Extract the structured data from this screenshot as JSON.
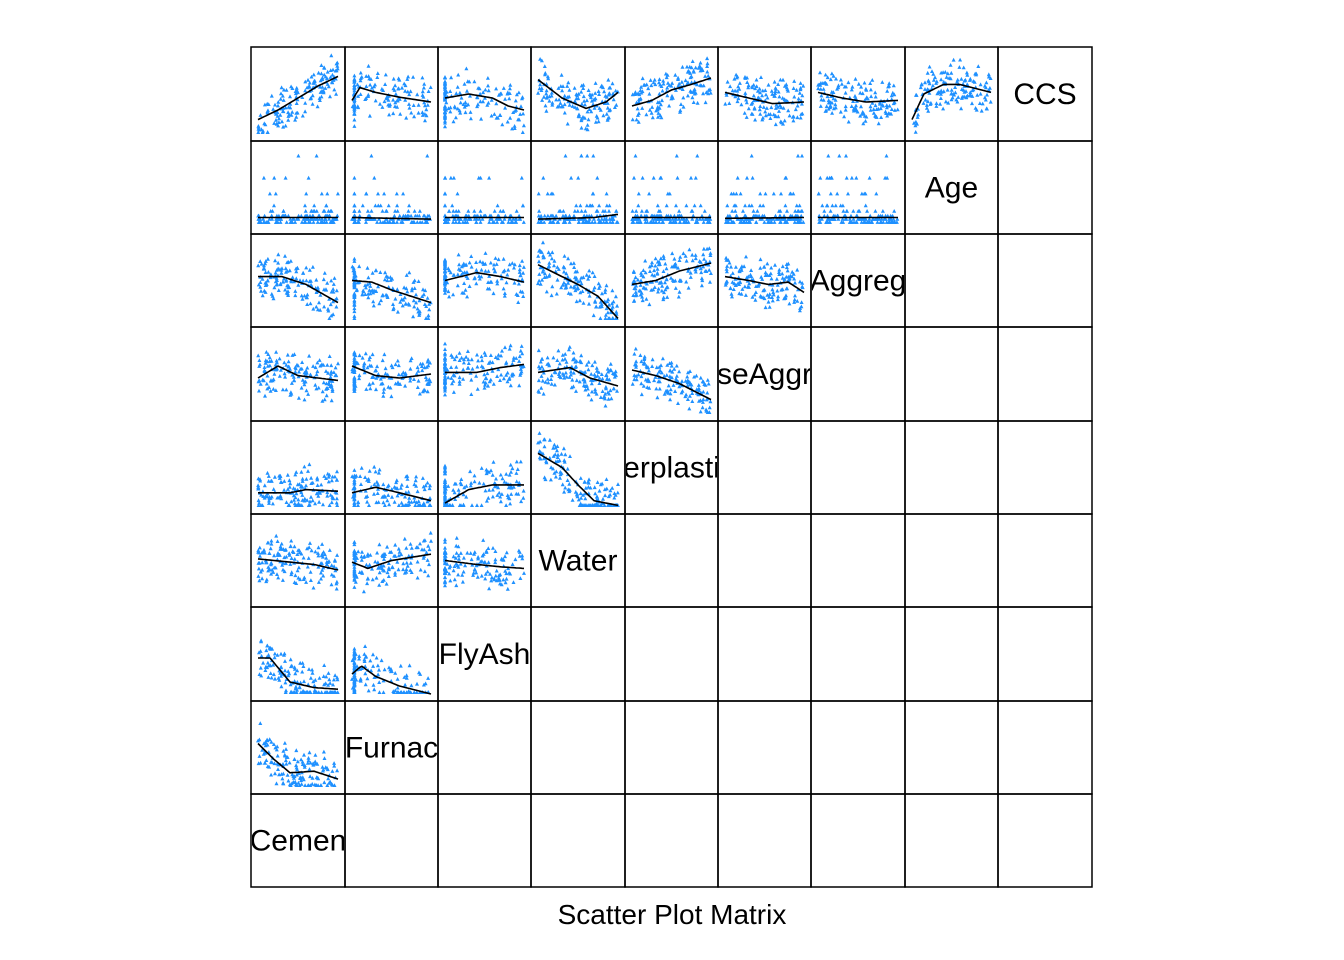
{
  "chart_data": {
    "type": "scatter",
    "title": "Scatter Plot Matrix",
    "layout": "lower-left triangle panels, variable names on anti-diagonal",
    "variables": [
      "Cement",
      "BlastFurnace",
      "FlyAsh",
      "Water",
      "Superplasticizer",
      "CoarseAggregate",
      "FineAggregate",
      "Age",
      "CCS"
    ],
    "variable_labels_visible": [
      "Cemen",
      "Furnac",
      "FlyAsh",
      "Water",
      "erplasti",
      "seAggr",
      "Aggreg",
      "Age",
      "CCS"
    ],
    "point_marker": "triangle",
    "point_color": "#1E90FF",
    "smoother_color": "#000000",
    "axes_ticks_shown": false,
    "grid": false,
    "panels": [
      {
        "y": "CCS",
        "x": "Cement",
        "smooth": [
          [
            0,
            0.18
          ],
          [
            0.25,
            0.3
          ],
          [
            0.5,
            0.45
          ],
          [
            0.75,
            0.6
          ],
          [
            1,
            0.72
          ]
        ]
      },
      {
        "y": "CCS",
        "x": "BlastFurnace",
        "smooth": [
          [
            0,
            0.42
          ],
          [
            0.1,
            0.58
          ],
          [
            0.3,
            0.52
          ],
          [
            0.6,
            0.46
          ],
          [
            1,
            0.4
          ]
        ]
      },
      {
        "y": "CCS",
        "x": "FlyAsh",
        "smooth": [
          [
            0,
            0.45
          ],
          [
            0.3,
            0.5
          ],
          [
            0.6,
            0.45
          ],
          [
            0.8,
            0.35
          ],
          [
            1,
            0.3
          ]
        ]
      },
      {
        "y": "CCS",
        "x": "Water",
        "smooth": [
          [
            0,
            0.68
          ],
          [
            0.3,
            0.45
          ],
          [
            0.6,
            0.32
          ],
          [
            0.85,
            0.4
          ],
          [
            1,
            0.52
          ]
        ]
      },
      {
        "y": "CCS",
        "x": "Superplasticizer",
        "smooth": [
          [
            0,
            0.35
          ],
          [
            0.25,
            0.42
          ],
          [
            0.5,
            0.55
          ],
          [
            0.75,
            0.62
          ],
          [
            1,
            0.7
          ]
        ]
      },
      {
        "y": "CCS",
        "x": "CoarseAggregate",
        "smooth": [
          [
            0,
            0.52
          ],
          [
            0.3,
            0.45
          ],
          [
            0.6,
            0.38
          ],
          [
            1,
            0.4
          ]
        ]
      },
      {
        "y": "CCS",
        "x": "FineAggregate",
        "smooth": [
          [
            0,
            0.52
          ],
          [
            0.3,
            0.45
          ],
          [
            0.6,
            0.4
          ],
          [
            1,
            0.42
          ]
        ]
      },
      {
        "y": "CCS",
        "x": "Age",
        "smooth": [
          [
            0,
            0.18
          ],
          [
            0.15,
            0.5
          ],
          [
            0.4,
            0.62
          ],
          [
            0.6,
            0.62
          ],
          [
            1,
            0.52
          ]
        ]
      },
      {
        "y": "Age",
        "x": "Cement",
        "smooth": [
          [
            0,
            0.12
          ],
          [
            1,
            0.12
          ]
        ]
      },
      {
        "y": "Age",
        "x": "BlastFurnace",
        "smooth": [
          [
            0,
            0.12
          ],
          [
            1,
            0.1
          ]
        ]
      },
      {
        "y": "Age",
        "x": "FlyAsh",
        "smooth": [
          [
            0,
            0.12
          ],
          [
            1,
            0.12
          ]
        ]
      },
      {
        "y": "Age",
        "x": "Water",
        "smooth": [
          [
            0,
            0.1
          ],
          [
            0.7,
            0.12
          ],
          [
            1,
            0.16
          ]
        ]
      },
      {
        "y": "Age",
        "x": "Superplasticizer",
        "smooth": [
          [
            0,
            0.12
          ],
          [
            1,
            0.12
          ]
        ]
      },
      {
        "y": "Age",
        "x": "CoarseAggregate",
        "smooth": [
          [
            0,
            0.11
          ],
          [
            1,
            0.12
          ]
        ]
      },
      {
        "y": "Age",
        "x": "FineAggregate",
        "smooth": [
          [
            0,
            0.12
          ],
          [
            1,
            0.12
          ]
        ]
      },
      {
        "y": "FineAggregate",
        "x": "Cement",
        "smooth": [
          [
            0,
            0.55
          ],
          [
            0.3,
            0.55
          ],
          [
            0.6,
            0.45
          ],
          [
            1,
            0.22
          ]
        ]
      },
      {
        "y": "FineAggregate",
        "x": "BlastFurnace",
        "smooth": [
          [
            0,
            0.5
          ],
          [
            0.25,
            0.48
          ],
          [
            0.5,
            0.38
          ],
          [
            1,
            0.22
          ]
        ]
      },
      {
        "y": "FineAggregate",
        "x": "FlyAsh",
        "smooth": [
          [
            0,
            0.5
          ],
          [
            0.4,
            0.6
          ],
          [
            0.7,
            0.55
          ],
          [
            1,
            0.48
          ]
        ]
      },
      {
        "y": "FineAggregate",
        "x": "Water",
        "smooth": [
          [
            0,
            0.7
          ],
          [
            0.3,
            0.55
          ],
          [
            0.5,
            0.45
          ],
          [
            0.75,
            0.3
          ],
          [
            1,
            0.02
          ]
        ]
      },
      {
        "y": "FineAggregate",
        "x": "Superplasticizer",
        "smooth": [
          [
            0,
            0.45
          ],
          [
            0.3,
            0.5
          ],
          [
            0.6,
            0.62
          ],
          [
            1,
            0.72
          ]
        ]
      },
      {
        "y": "FineAggregate",
        "x": "CoarseAggregate",
        "smooth": [
          [
            0,
            0.55
          ],
          [
            0.3,
            0.5
          ],
          [
            0.55,
            0.45
          ],
          [
            0.8,
            0.48
          ],
          [
            1,
            0.35
          ]
        ]
      },
      {
        "y": "CoarseAggregate",
        "x": "Cement",
        "smooth": [
          [
            0,
            0.45
          ],
          [
            0.25,
            0.6
          ],
          [
            0.5,
            0.48
          ],
          [
            1,
            0.42
          ]
        ]
      },
      {
        "y": "CoarseAggregate",
        "x": "BlastFurnace",
        "smooth": [
          [
            0,
            0.6
          ],
          [
            0.3,
            0.48
          ],
          [
            0.6,
            0.45
          ],
          [
            1,
            0.5
          ]
        ]
      },
      {
        "y": "CoarseAggregate",
        "x": "FlyAsh",
        "smooth": [
          [
            0,
            0.52
          ],
          [
            0.4,
            0.52
          ],
          [
            0.7,
            0.58
          ],
          [
            1,
            0.62
          ]
        ]
      },
      {
        "y": "CoarseAggregate",
        "x": "Water",
        "smooth": [
          [
            0,
            0.52
          ],
          [
            0.4,
            0.58
          ],
          [
            0.65,
            0.45
          ],
          [
            1,
            0.35
          ]
        ]
      },
      {
        "y": "CoarseAggregate",
        "x": "Superplasticizer",
        "smooth": [
          [
            0,
            0.55
          ],
          [
            0.3,
            0.48
          ],
          [
            0.6,
            0.38
          ],
          [
            1,
            0.18
          ]
        ]
      },
      {
        "y": "Superplasticizer",
        "x": "Cement",
        "smooth": [
          [
            0,
            0.18
          ],
          [
            0.4,
            0.18
          ],
          [
            0.6,
            0.22
          ],
          [
            1,
            0.2
          ]
        ]
      },
      {
        "y": "Superplasticizer",
        "x": "BlastFurnace",
        "smooth": [
          [
            0,
            0.18
          ],
          [
            0.3,
            0.25
          ],
          [
            0.6,
            0.18
          ],
          [
            1,
            0.08
          ]
        ]
      },
      {
        "y": "Superplasticizer",
        "x": "FlyAsh",
        "smooth": [
          [
            0,
            0.05
          ],
          [
            0.3,
            0.22
          ],
          [
            0.6,
            0.28
          ],
          [
            1,
            0.28
          ]
        ]
      },
      {
        "y": "Superplasticizer",
        "x": "Water",
        "smooth": [
          [
            0,
            0.68
          ],
          [
            0.3,
            0.5
          ],
          [
            0.5,
            0.28
          ],
          [
            0.7,
            0.08
          ],
          [
            1,
            0.02
          ]
        ]
      },
      {
        "y": "Water",
        "x": "Cement",
        "smooth": [
          [
            0,
            0.52
          ],
          [
            0.4,
            0.48
          ],
          [
            0.7,
            0.45
          ],
          [
            1,
            0.38
          ]
        ]
      },
      {
        "y": "Water",
        "x": "BlastFurnace",
        "smooth": [
          [
            0,
            0.48
          ],
          [
            0.2,
            0.4
          ],
          [
            0.5,
            0.5
          ],
          [
            1,
            0.58
          ]
        ]
      },
      {
        "y": "Water",
        "x": "FlyAsh",
        "smooth": [
          [
            0,
            0.5
          ],
          [
            0.4,
            0.45
          ],
          [
            0.7,
            0.42
          ],
          [
            1,
            0.4
          ]
        ]
      },
      {
        "y": "FlyAsh",
        "x": "Cement",
        "smooth": [
          [
            0,
            0.45
          ],
          [
            0.15,
            0.45
          ],
          [
            0.4,
            0.15
          ],
          [
            0.7,
            0.08
          ],
          [
            1,
            0.06
          ]
        ]
      },
      {
        "y": "FlyAsh",
        "x": "BlastFurnace",
        "smooth": [
          [
            0,
            0.25
          ],
          [
            0.12,
            0.35
          ],
          [
            0.3,
            0.22
          ],
          [
            0.6,
            0.1
          ],
          [
            1,
            0.0
          ]
        ]
      },
      {
        "y": "BlastFurnace",
        "x": "Cement",
        "smooth": [
          [
            0,
            0.55
          ],
          [
            0.2,
            0.35
          ],
          [
            0.4,
            0.18
          ],
          [
            0.7,
            0.2
          ],
          [
            1,
            0.1
          ]
        ]
      }
    ]
  }
}
